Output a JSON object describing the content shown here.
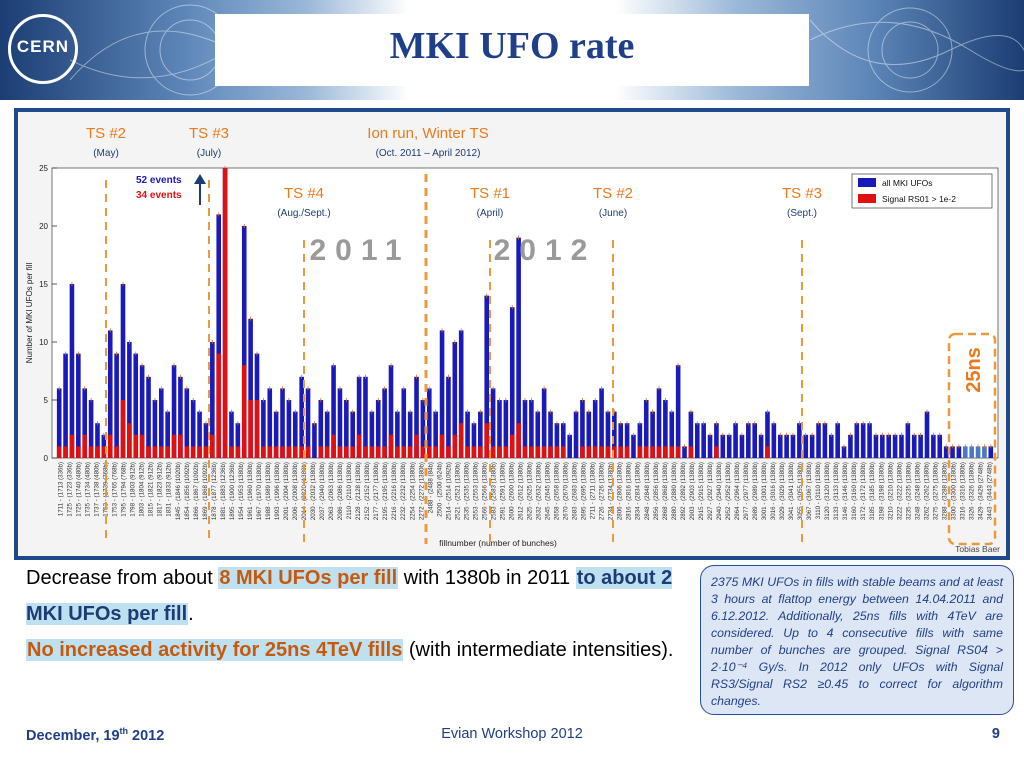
{
  "header": {
    "logo_text": "CERN",
    "title": "MKI UFO rate"
  },
  "colors": {
    "header_dark": "#1b3d73",
    "title": "#1f3f88",
    "bar_all": "#1a1ab8",
    "bar_signal": "#e01010",
    "annotation_orange": "#ea7a1c",
    "year_label_gray": "#9a9a9a"
  },
  "chart_data": {
    "type": "bar",
    "ylabel": "Number of MKI UFOs per fill",
    "xlabel": "fillnumber (number of bunches)",
    "ylim": [
      0,
      25
    ],
    "yticks": [
      0,
      5,
      10,
      15,
      20,
      25
    ],
    "credit": "Tobias Baer",
    "legend": {
      "position": "top-right",
      "entries": [
        {
          "name": "all MKI UFOs",
          "color": "#1a1ab8"
        },
        {
          "name": "Signal RS01 > 1e-2",
          "color": "#e01010"
        }
      ]
    },
    "series": [
      {
        "name": "all MKI UFOs",
        "color": "#1a1ab8",
        "values": [
          6,
          9,
          15,
          9,
          6,
          5,
          3,
          2,
          11,
          9,
          15,
          10,
          9,
          8,
          7,
          5,
          6,
          4,
          8,
          7,
          6,
          5,
          4,
          3,
          10,
          21,
          25,
          4,
          3,
          20,
          12,
          9,
          5,
          6,
          4,
          6,
          5,
          4,
          7,
          6,
          3,
          5,
          4,
          8,
          6,
          5,
          4,
          7,
          7,
          4,
          5,
          6,
          8,
          4,
          6,
          4,
          7,
          5,
          6,
          4,
          11,
          7,
          10,
          11,
          4,
          3,
          4,
          14,
          6,
          5,
          5,
          13,
          19,
          5,
          5,
          4,
          6,
          4,
          3,
          3,
          2,
          4,
          5,
          4,
          5,
          6,
          4,
          4,
          3,
          3,
          2,
          3,
          5,
          4,
          6,
          5,
          4,
          8,
          1,
          4,
          3,
          3,
          2,
          3,
          2,
          2,
          3,
          2,
          3,
          3,
          2,
          4,
          3,
          2,
          2,
          2,
          3,
          2,
          2,
          3,
          3,
          2,
          3,
          1,
          2,
          3,
          3,
          3,
          2,
          2,
          2,
          2,
          2,
          3,
          2,
          2,
          4,
          2,
          2,
          1,
          1,
          1,
          1,
          1,
          1,
          1,
          1
        ]
      },
      {
        "name": "Signal RS01 > 1e-2",
        "color": "#e01010",
        "values": [
          1,
          1,
          2,
          1,
          2,
          1,
          1,
          1,
          2,
          1,
          5,
          3,
          2,
          2,
          1,
          1,
          1,
          1,
          2,
          2,
          1,
          1,
          1,
          1,
          2,
          9,
          25,
          1,
          1,
          8,
          5,
          5,
          1,
          1,
          1,
          1,
          1,
          1,
          1,
          1,
          0,
          1,
          1,
          2,
          1,
          1,
          1,
          2,
          1,
          1,
          1,
          1,
          2,
          1,
          1,
          1,
          2,
          1,
          1,
          1,
          2,
          1,
          2,
          3,
          1,
          1,
          1,
          3,
          1,
          1,
          1,
          2,
          3,
          1,
          1,
          1,
          1,
          1,
          1,
          1,
          0,
          0,
          1,
          1,
          1,
          1,
          1,
          1,
          1,
          1,
          0,
          1,
          1,
          1,
          1,
          1,
          1,
          1,
          0,
          1,
          0,
          0,
          0,
          1,
          0,
          0,
          0,
          0,
          0,
          0,
          0,
          1,
          0,
          0,
          0,
          0,
          0,
          0,
          0,
          0,
          0,
          0,
          0,
          0,
          0,
          0,
          0,
          0,
          0,
          0,
          0,
          0,
          0,
          0,
          0,
          0,
          0,
          0,
          0,
          0,
          0,
          0,
          0,
          0,
          0,
          0,
          0
        ]
      }
    ],
    "bar_25ns_indices": [
      142,
      143,
      144,
      145
    ],
    "x_tick_labels": [
      "1711 - (1713 (336b)",
      "1725 - (1723 (336b)",
      "1725 - (1740 (480b)",
      "1735 - (1734 (480b)",
      "1737 - (1738 (480b)",
      "1753 - (1739 (768b)",
      "1753 - (1765 (768b)",
      "1795 - (1794 (768b)",
      "1798 - (1803 (912b)",
      "1803 - (1804 (912b)",
      "1815 - (1821 (912b)",
      "1817 - (1823 (912b)",
      "1831 - (1833 (912b)",
      "1845 - (1846 (1020b)",
      "1854 - (1856 (1092b)",
      "1866 - (1867 (1092b)",
      "1869 - (1868 (1092b)",
      "1878 - (1877 (1236b)",
      "1881 - (1883 (1236b)",
      "1895 - (1900 (1236b)",
      "1954 - (1953 (1380b)",
      "1961 - (1960 (1380b)",
      "1967 - (1970 (1380b)",
      "1988 - (1989 (1380b)",
      "1993 - (1996 (1380b)",
      "2001 - (2004 (1380b)",
      "2006 - (2008 (1380b)",
      "2014 - (2020 (1380b)",
      "2030 - (2032 (1380b)",
      "2037 - (2040 (1380b)",
      "2063 - (2063 (1380b)",
      "2086 - (2086 (1380b)",
      "2110 - (2110 (1380b)",
      "2128 - (2128 (1380b)",
      "2152 - (2152 (1380b)",
      "2177 - (2177 (1380b)",
      "2195 - (2195 (1380b)",
      "2216 - (2216 (1380b)",
      "2232 - (2232 (1380b)",
      "2254 - (2254 (1380b)",
      "2272 - (2272 (1380b)",
      "2488 - (2488 (84b)",
      "2500 - (2500 (624b)",
      "2514 - (2514 (1092b)",
      "2521 - (2521 (1380b)",
      "2535 - (2535 (1380b)",
      "2553 - (2553 (1380b)",
      "2566 - (2566 (1380b)",
      "2583 - (2583 (1380b)",
      "2591 - (2591 (1380b)",
      "2600 - (2600 (1380b)",
      "2612 - (2612 (1380b)",
      "2625 - (2625 (1380b)",
      "2632 - (2632 (1380b)",
      "2645 - (2645 (1380b)",
      "2658 - (2658 (1380b)",
      "2670 - (2670 (1380b)",
      "2683 - (2683 (1380b)",
      "2695 - (2695 (1380b)",
      "2711 - (2711 (1380b)",
      "2726 - (2726 (1380b)",
      "2734 - (2734 (1380b)",
      "2806 - (2806 (1380b)",
      "2816 - (2816 (1380b)",
      "2834 - (2834 (1380b)",
      "2848 - (2848 (1380b)",
      "2856 - (2856 (1380b)",
      "2868 - (2868 (1380b)",
      "2880 - (2880 (1380b)",
      "2892 - (2892 (1380b)",
      "2903 - (2903 (1380b)",
      "2915 - (2915 (1380b)",
      "2927 - (2927 (1380b)",
      "2940 - (2940 (1380b)",
      "2952 - (2952 (1380b)",
      "2964 - (2964 (1380b)",
      "2977 - (2977 (1380b)",
      "2989 - (2989 (1380b)",
      "3001 - (3001 (1380b)",
      "3016 - (3016 (1380b)",
      "3029 - (3029 (1380b)",
      "3041 - (3041 (1380b)",
      "3055 - (3055 (1380b)",
      "3067 - (3067 (1380b)",
      "3110 - (3110 (1380b)",
      "3120 - (3120 (1380b)",
      "3133 - (3133 (1380b)",
      "3146 - (3146 (1380b)",
      "3160 - (3160 (1380b)",
      "3172 - (3172 (1380b)",
      "3185 - (3185 (1380b)",
      "3198 - (3198 (1380b)",
      "3210 - (3210 (1380b)",
      "3222 - (3222 (1380b)",
      "3235 - (3235 (1380b)",
      "3248 - (3248 (1380b)",
      "3262 - (3262 (1380b)",
      "3275 - (3275 (1380b)",
      "3288 - (3288 (1380b)",
      "3300 - (3300 (1380b)",
      "3316 - (3316 (1380b)",
      "3326 - (3326 (1380b)",
      "3429 - (3429 (2748b)",
      "3443 - (3443 (2748b)"
    ],
    "annotations": [
      {
        "label": "TS #2",
        "sub": "(May)"
      },
      {
        "label": "TS #3",
        "sub": "(July)"
      },
      {
        "label": "Ion run, Winter TS",
        "sub": "(Oct. 2011 – April 2012)"
      },
      {
        "label": "TS #4",
        "sub": "(Aug./Sept.)"
      },
      {
        "label": "TS #1",
        "sub": "(April)"
      },
      {
        "label": "TS #2",
        "sub": "(June)"
      },
      {
        "label": "TS #3",
        "sub": "(Sept.)"
      }
    ],
    "event_counts": {
      "all": "52 events",
      "signal": "34 events"
    },
    "year_labels": [
      "2011",
      "2012"
    ],
    "box_25ns_label": "25ns"
  },
  "caption": {
    "p1_a": "Decrease from about ",
    "p1_hl": "8 MKI UFOs per fill",
    "p1_b": " with 1380b in 2011 ",
    "p1_hl2": "to about 2 MKI UFOs per fill",
    "p1_c": ".",
    "p2_hl": "No increased activity for 25ns 4TeV fills",
    "p2_b": " (with intermediate intensities)."
  },
  "note": "2375 MKI UFOs in fills with stable beams and at least 3 hours at flattop energy between 14.04.2011 and 6.12.2012. Additionally, 25ns fills with 4TeV are considered. Up to 4 consecutive fills with same number of bunches are grouped. Signal RS04 > 2·10⁻⁴ Gy/s. In 2012 only UFOs with Signal RS3/Signal RS2 ≥0.45 to correct for algorithm changes.",
  "footer": {
    "date_pre": "December, 19",
    "date_sup": "th",
    "date_post": " 2012",
    "event": "Evian Workshop 2012",
    "page": "9"
  }
}
